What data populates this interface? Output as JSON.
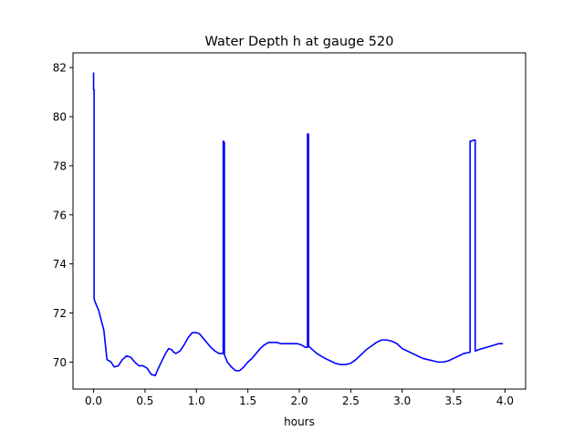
{
  "chart_data": {
    "type": "line",
    "title": "Water Depth h at gauge 520",
    "xlabel": "hours",
    "ylabel": "",
    "xlim": [
      -0.2,
      4.2
    ],
    "ylim": [
      68.9,
      82.6
    ],
    "x_ticks": [
      0.0,
      0.5,
      1.0,
      1.5,
      2.0,
      2.5,
      3.0,
      3.5,
      4.0
    ],
    "x_tick_labels": [
      "0.0",
      "0.5",
      "1.0",
      "1.5",
      "2.0",
      "2.5",
      "3.0",
      "3.5",
      "4.0"
    ],
    "y_ticks": [
      70,
      72,
      74,
      76,
      78,
      80,
      82
    ],
    "y_tick_labels": [
      "70",
      "72",
      "74",
      "76",
      "78",
      "80",
      "82"
    ],
    "grid": false,
    "series": [
      {
        "color": "#0000ff",
        "x": [
          0.0,
          0.0,
          0.005,
          0.005,
          0.01,
          0.05,
          0.1,
          0.13,
          0.17,
          0.2,
          0.24,
          0.28,
          0.32,
          0.36,
          0.4,
          0.44,
          0.48,
          0.52,
          0.56,
          0.6,
          0.63,
          0.67,
          0.7,
          0.73,
          0.76,
          0.78,
          0.8,
          0.84,
          0.88,
          0.92,
          0.96,
          1.0,
          1.03,
          1.06,
          1.1,
          1.14,
          1.18,
          1.22,
          1.26,
          1.26,
          1.263,
          1.268,
          1.272,
          1.272,
          1.3,
          1.34,
          1.38,
          1.42,
          1.46,
          1.5,
          1.54,
          1.58,
          1.62,
          1.66,
          1.7,
          1.74,
          1.78,
          1.82,
          1.86,
          1.9,
          1.94,
          1.98,
          2.02,
          2.06,
          2.08,
          2.08,
          2.085,
          2.09,
          2.09,
          2.13,
          2.17,
          2.21,
          2.25,
          2.3,
          2.35,
          2.4,
          2.45,
          2.5,
          2.55,
          2.6,
          2.65,
          2.7,
          2.75,
          2.8,
          2.85,
          2.9,
          2.95,
          3.0,
          3.05,
          3.1,
          3.15,
          3.2,
          3.25,
          3.3,
          3.35,
          3.4,
          3.45,
          3.5,
          3.55,
          3.6,
          3.66,
          3.66,
          3.67,
          3.7,
          3.71,
          3.71,
          3.74,
          3.78,
          3.82,
          3.86,
          3.9,
          3.94,
          3.98
        ],
        "y": [
          81.8,
          81.1,
          81.1,
          72.6,
          72.5,
          72.1,
          71.3,
          70.1,
          70.0,
          69.8,
          69.85,
          70.1,
          70.25,
          70.2,
          70.0,
          69.85,
          69.85,
          69.75,
          69.5,
          69.45,
          69.75,
          70.1,
          70.35,
          70.55,
          70.5,
          70.4,
          70.35,
          70.45,
          70.7,
          71.0,
          71.2,
          71.2,
          71.15,
          71.0,
          70.8,
          70.6,
          70.45,
          70.35,
          70.35,
          79.0,
          79.0,
          78.95,
          78.95,
          70.3,
          70.0,
          69.8,
          69.65,
          69.65,
          69.8,
          70.0,
          70.15,
          70.35,
          70.55,
          70.7,
          70.8,
          70.8,
          70.8,
          70.75,
          70.75,
          70.75,
          70.75,
          70.75,
          70.7,
          70.6,
          70.6,
          79.3,
          79.3,
          79.25,
          70.65,
          70.5,
          70.35,
          70.25,
          70.15,
          70.05,
          69.95,
          69.9,
          69.9,
          69.95,
          70.1,
          70.3,
          70.5,
          70.65,
          70.8,
          70.9,
          70.9,
          70.85,
          70.75,
          70.55,
          70.45,
          70.35,
          70.25,
          70.15,
          70.1,
          70.05,
          70.0,
          70.0,
          70.05,
          70.15,
          70.25,
          70.35,
          70.4,
          79.0,
          79.0,
          79.05,
          79.05,
          70.45,
          70.5,
          70.55,
          70.6,
          70.65,
          70.7,
          70.75,
          70.75
        ]
      }
    ]
  }
}
